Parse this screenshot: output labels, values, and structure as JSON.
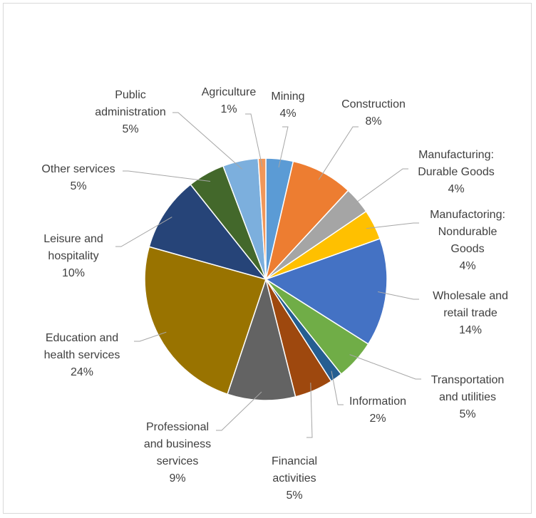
{
  "chart_data": {
    "type": "pie",
    "title": "",
    "start_angle_deg": 0,
    "direction": "clockwise",
    "slices": [
      {
        "key": "mining",
        "lines": [
          "Mining"
        ],
        "pct": "4%",
        "value": 3.6,
        "color": "#5b9bd5"
      },
      {
        "key": "construction",
        "lines": [
          "Construction"
        ],
        "pct": "8%",
        "value": 8.2,
        "color": "#ed7d31"
      },
      {
        "key": "mfg-durable",
        "lines": [
          "Manufacturing:",
          "Durable Goods"
        ],
        "pct": "4%",
        "value": 3.6,
        "color": "#a5a5a5"
      },
      {
        "key": "mfg-nondurable",
        "lines": [
          "Manufactoring:",
          "Nondurable",
          "Goods"
        ],
        "pct": "4%",
        "value": 4.0,
        "color": "#ffc000"
      },
      {
        "key": "wholesale",
        "lines": [
          "Wholesale and",
          "retail trade"
        ],
        "pct": "14%",
        "value": 14.3,
        "color": "#4472c4"
      },
      {
        "key": "transport",
        "lines": [
          "Transportation",
          "and utilities"
        ],
        "pct": "5%",
        "value": 5.3,
        "color": "#70ad47"
      },
      {
        "key": "information",
        "lines": [
          "Information"
        ],
        "pct": "2%",
        "value": 1.6,
        "color": "#255e91"
      },
      {
        "key": "financial",
        "lines": [
          "Financial",
          "activities"
        ],
        "pct": "5%",
        "value": 5.1,
        "color": "#9e480e"
      },
      {
        "key": "professional",
        "lines": [
          "Professional",
          "and business",
          "services"
        ],
        "pct": "9%",
        "value": 9.0,
        "color": "#636363"
      },
      {
        "key": "education",
        "lines": [
          "Education and",
          "health services"
        ],
        "pct": "24%",
        "value": 24.0,
        "color": "#997300"
      },
      {
        "key": "leisure",
        "lines": [
          "Leisure and",
          "hospitality"
        ],
        "pct": "10%",
        "value": 9.9,
        "color": "#264478"
      },
      {
        "key": "other",
        "lines": [
          "Other services"
        ],
        "pct": "5%",
        "value": 4.9,
        "color": "#43682b"
      },
      {
        "key": "public-admin",
        "lines": [
          "Public",
          "administration"
        ],
        "pct": "5%",
        "value": 4.7,
        "color": "#7cafdd"
      },
      {
        "key": "agriculture",
        "lines": [
          "Agriculture"
        ],
        "pct": "1%",
        "value": 1.0,
        "color": "#f1975a"
      }
    ]
  }
}
